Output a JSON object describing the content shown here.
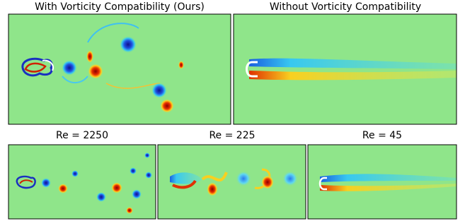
{
  "top_row": [
    {
      "title": "With Vorticity Compatibility (Ours)"
    },
    {
      "title": "Without Vorticity Compatibility"
    }
  ],
  "bottom_row": [
    {
      "title": "Re = 2250"
    },
    {
      "title": "Re = 225"
    },
    {
      "title": "Re = 45"
    }
  ]
}
